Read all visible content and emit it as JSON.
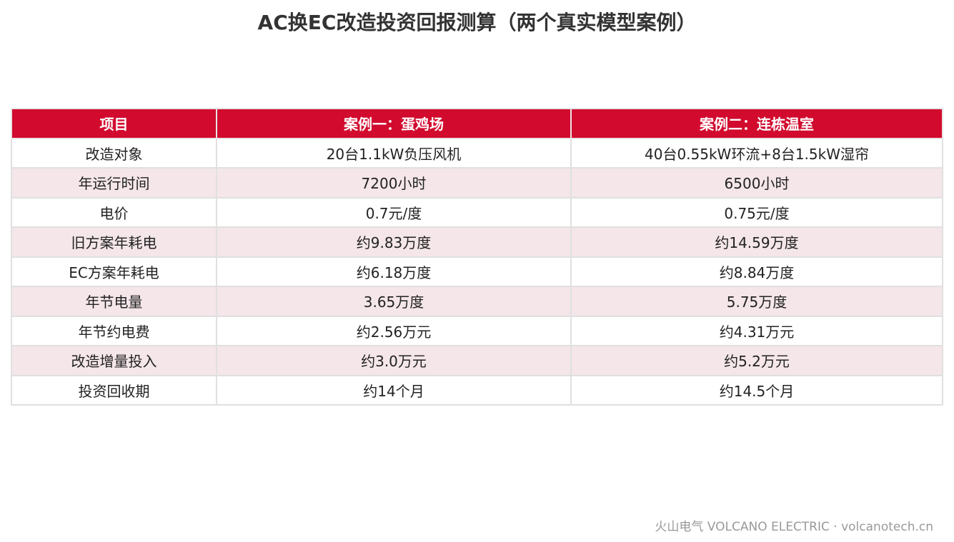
{
  "title": "AC换EC改造投资回报测算（两个真实模型案例）",
  "table": {
    "header": [
      "项目",
      "案例一：蛋鸡场",
      "案例二：连栋温室"
    ],
    "rows": [
      [
        "改造对象",
        "20台1.1kW负压风机",
        "40台0.55kW环流+8台1.5kW湿帘"
      ],
      [
        "年运行时间",
        "7200小时",
        "6500小时"
      ],
      [
        "电价",
        "0.7元/度",
        "0.75元/度"
      ],
      [
        "旧方案年耗电",
        "约9.83万度",
        "约14.59万度"
      ],
      [
        "EC方案年耗电",
        "约6.18万度",
        "约8.84万度"
      ],
      [
        "年节电量",
        "3.65万度",
        "5.75万度"
      ],
      [
        "年节约电费",
        "约2.56万元",
        "约4.31万元"
      ],
      [
        "改造增量投入",
        "约3.0万元",
        "约5.2万元"
      ],
      [
        "投资回收期",
        "约14个月",
        "约14.5个月"
      ]
    ]
  },
  "footer": "火山电气 VOLCANO ELECTRIC · volcanotech.cn"
}
